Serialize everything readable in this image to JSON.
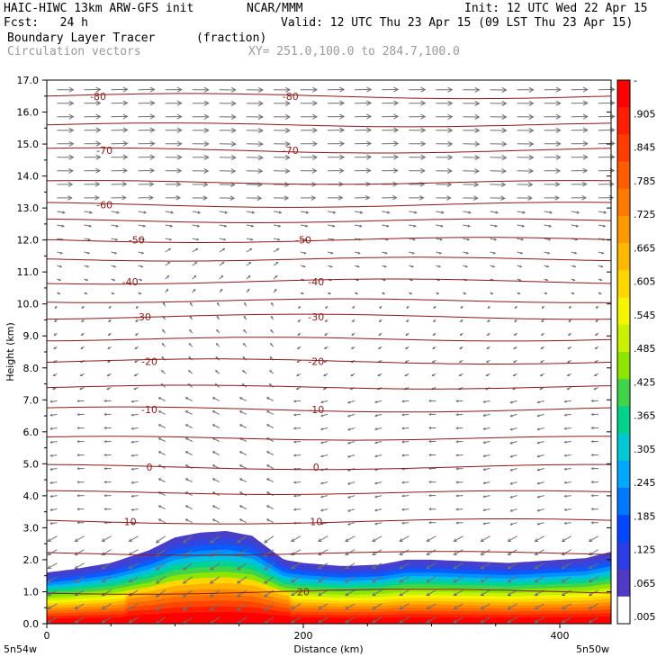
{
  "header": {
    "line1_left": "HAIC-HIWC 13km ARW-GFS init",
    "line1_mid": "NCAR/MMM",
    "line1_right": "Init: 12 UTC Wed 22 Apr 15",
    "line2_left": "Fcst:   24 h",
    "line2_right": "Valid: 12 UTC Thu 23 Apr 15 (09 LST Thu 23 Apr 15)",
    "line3_left": "Boundary Layer Tracer",
    "line3_units": "(fraction)",
    "line4_left": "Circulation vectors",
    "line4_xy": "XY= 251.0,100.0 to 284.7,100.0"
  },
  "colors": {
    "contour": "#8b1a1a",
    "vector": "#707070",
    "axis": "#000000"
  },
  "chart_data": {
    "type": "heatmap",
    "title": "Boundary Layer Tracer",
    "units": "(fraction)",
    "xlabel": "Distance (km)",
    "ylabel": "Height (km)",
    "xlim": [
      0,
      440
    ],
    "ylim": [
      0,
      17
    ],
    "x_ticks": [
      0,
      200,
      400
    ],
    "y_ticks": [
      0.0,
      1.0,
      2.0,
      3.0,
      4.0,
      5.0,
      6.0,
      7.0,
      8.0,
      9.0,
      10.0,
      11.0,
      12.0,
      13.0,
      14.0,
      15.0,
      16.0,
      17.0
    ],
    "y_tick_labels": [
      "0.0",
      "1.0",
      "2.0",
      "3.0",
      "4.0",
      "5.0",
      "6.0",
      "7.0",
      "8.0",
      "9.0",
      "10.0",
      "11.0",
      "12.0",
      "13.0",
      "14.0",
      "15.0",
      "16.0",
      "17.0"
    ],
    "x_endpoint_labels": [
      "5n54w",
      "5n50w"
    ],
    "tracer_top_profile": {
      "x": [
        0,
        20,
        50,
        80,
        100,
        120,
        140,
        160,
        175,
        185,
        200,
        230,
        260,
        280,
        300,
        330,
        360,
        400,
        420,
        440
      ],
      "height": [
        1.6,
        1.7,
        1.9,
        2.3,
        2.7,
        2.85,
        2.9,
        2.75,
        2.3,
        2.0,
        1.9,
        1.8,
        1.85,
        2.0,
        2.0,
        1.95,
        1.9,
        2.0,
        2.05,
        2.25
      ]
    },
    "colorbar": {
      "labels": [
        "-",
        ".905",
        ".845",
        ".785",
        ".725",
        ".665",
        ".605",
        ".545",
        ".485",
        ".425",
        ".365",
        ".305",
        ".245",
        ".185",
        ".125",
        ".065",
        ".005"
      ],
      "colors": [
        "#ff0000",
        "#ff1f00",
        "#ff3d00",
        "#ff5c00",
        "#ff7a00",
        "#ff9900",
        "#ffb800",
        "#ffd600",
        "#f5f500",
        "#c8f000",
        "#8ee600",
        "#3fd44a",
        "#00d28c",
        "#00c8d4",
        "#00a8ff",
        "#0077ff",
        "#0047ff",
        "#2a3de6",
        "#4f3ac8",
        "#ffffff"
      ]
    },
    "temperature_contours": [
      {
        "label": "-80",
        "height": 16.5,
        "label_x": [
          40,
          190
        ]
      },
      {
        "label": "-70",
        "height": 14.8,
        "label_x": [
          45,
          190
        ]
      },
      {
        "label": "-60",
        "height": 13.1,
        "label_x": [
          45
        ]
      },
      {
        "label": "-50",
        "height": 12.0,
        "label_x": [
          70,
          200
        ]
      },
      {
        "label": "-40",
        "height": 10.7,
        "label_x": [
          65,
          210
        ]
      },
      {
        "label": "-30",
        "height": 9.6,
        "label_x": [
          75,
          210
        ]
      },
      {
        "label": "-20",
        "height": 8.2,
        "label_x": [
          80,
          210
        ]
      },
      {
        "label": "-10",
        "height": 6.7,
        "label_x": [
          80,
          210
        ]
      },
      {
        "label": "0",
        "height": 4.9,
        "label_x": [
          80,
          210
        ]
      },
      {
        "label": "10",
        "height": 3.2,
        "label_x": [
          65,
          210
        ]
      },
      {
        "label": "20",
        "height": 1.0,
        "label_x": [
          200
        ]
      }
    ],
    "vectors": "circulation vectors (u,w) on regular grid"
  }
}
